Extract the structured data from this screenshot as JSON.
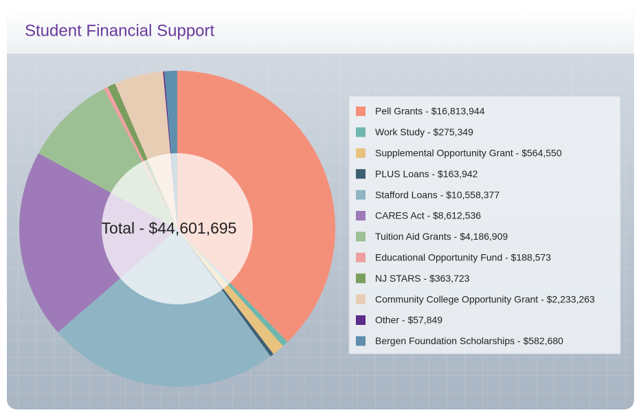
{
  "chart_data": {
    "type": "pie",
    "title": "Student Financial Support",
    "center_label": "Total - $44,601,695",
    "categories": [
      "Pell Grants - $16,813,944",
      "Work Study - $275,349",
      "Supplemental Opportunity Grant - $564,550",
      "PLUS Loans - $163,942",
      "Stafford Loans - $10,558,377",
      "CARES Act - $8,612,536",
      "Tuition Aid Grants - $4,186,909",
      "Educational Opportunity Fund - $188,573",
      "NJ STARS - $363,723",
      "Community College Opportunity Grant - $2,233,263",
      "Other - $57,849",
      "Bergen Foundation Scholarships - $582,680"
    ],
    "values": [
      16813944,
      275349,
      564550,
      163942,
      10558377,
      8612536,
      4186909,
      188573,
      363723,
      2233263,
      57849,
      582680
    ],
    "colors": [
      "#f4907a",
      "#6fb6ad",
      "#e8c37f",
      "#3d5f73",
      "#8fb4c4",
      "#9e7bb8",
      "#9dbf94",
      "#f0a0a0",
      "#7a9e5e",
      "#e8cdb5",
      "#5c2d8a",
      "#5f8fae"
    ]
  }
}
